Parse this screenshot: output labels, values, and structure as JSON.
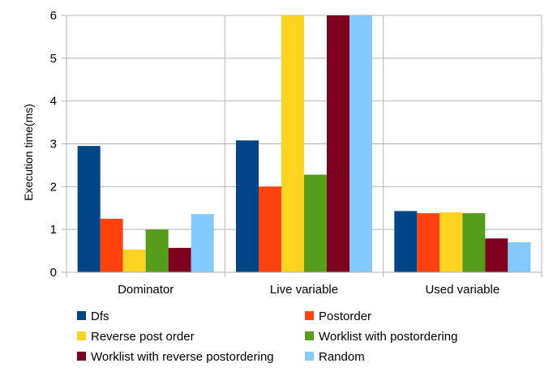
{
  "chart_data": {
    "type": "bar",
    "title": "",
    "xlabel": "",
    "ylabel": "Execution time(ms)",
    "ylim": [
      0,
      6
    ],
    "yticks": [
      "0",
      "1",
      "2",
      "3",
      "4",
      "5",
      "6"
    ],
    "grid": "horizontal",
    "legend_position": "bottom",
    "categories": [
      "Dominator",
      "Live variable",
      "Used variable"
    ],
    "series": [
      {
        "name": "Dfs",
        "color": "#004586",
        "values": [
          2.95,
          3.08,
          1.43
        ]
      },
      {
        "name": "Postorder",
        "color": "#ff420e",
        "values": [
          1.25,
          2.0,
          1.38
        ]
      },
      {
        "name": "Reverse post order",
        "color": "#ffd320",
        "values": [
          0.53,
          6.0,
          1.4
        ]
      },
      {
        "name": "Worklist with postordering",
        "color": "#579d1c",
        "values": [
          1.0,
          2.28,
          1.38
        ]
      },
      {
        "name": "Worklist with reverse postordering",
        "color": "#7e0021",
        "values": [
          0.57,
          6.0,
          0.79
        ]
      },
      {
        "name": "Random",
        "color": "#83caff",
        "values": [
          1.36,
          6.0,
          0.7
        ]
      }
    ]
  }
}
